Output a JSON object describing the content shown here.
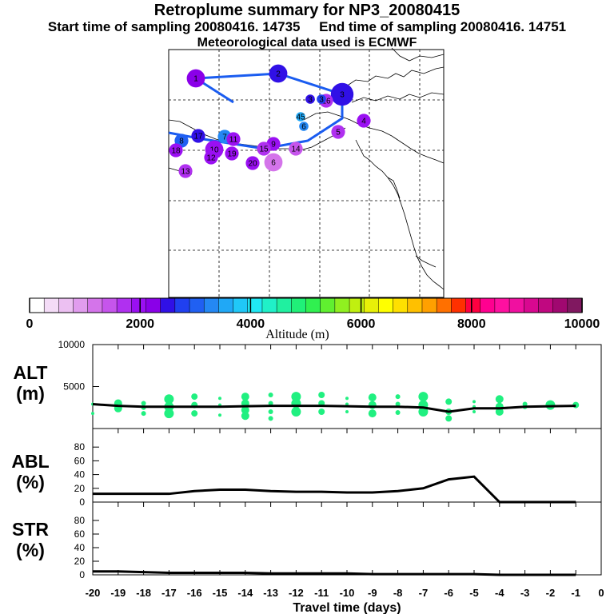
{
  "header": {
    "title": "Retroplume summary for NP3_20080415",
    "start_label": "Start time of sampling 20080416. 14735",
    "end_label": "End time of sampling 20080416. 14751",
    "met_label": "Meteorological data used is ECMWF"
  },
  "colorbar": {
    "axis_title": "Altitude (m)",
    "tick_labels": [
      "0",
      "2000",
      "4000",
      "6000",
      "8000",
      "10000"
    ],
    "colors": [
      "#ffffff",
      "#f4dcf7",
      "#ecc0f2",
      "#e19cee",
      "#d474ea",
      "#c655ec",
      "#b030f0",
      "#9a10f2",
      "#8a00e8",
      "#3010e6",
      "#2040f0",
      "#2060f2",
      "#2488f4",
      "#20a8f6",
      "#20c8f8",
      "#20e8f4",
      "#20f0c8",
      "#20f0a0",
      "#20f078",
      "#30f050",
      "#60f030",
      "#90f020",
      "#c0f010",
      "#e8f008",
      "#ffff00",
      "#ffe000",
      "#ffc000",
      "#ffa000",
      "#ff7000",
      "#ff3000",
      "#ff0040",
      "#ff0090",
      "#ff10a0",
      "#f010a0",
      "#d80890",
      "#c00880",
      "#a00870",
      "#801860"
    ]
  },
  "map": {
    "points": [
      {
        "label": "1",
        "alt": 2300,
        "size": 3
      },
      {
        "label": "2",
        "alt": 2500,
        "size": 3
      },
      {
        "label": "3",
        "alt": 2400,
        "size": 4
      },
      {
        "label": "4",
        "alt": 2100,
        "size": 2
      },
      {
        "label": "5",
        "alt": 1800,
        "size": 2
      },
      {
        "label": "6",
        "alt": 3400,
        "size": 1
      },
      {
        "label": "6",
        "alt": 1200,
        "size": 3
      },
      {
        "label": "7",
        "alt": 3200,
        "size": 2
      },
      {
        "label": "8",
        "alt": 2900,
        "size": 2
      },
      {
        "label": "9",
        "alt": 2000,
        "size": 2
      },
      {
        "label": "10",
        "alt": 2100,
        "size": 3
      },
      {
        "label": "11",
        "alt": 1900,
        "size": 2
      },
      {
        "label": "12",
        "alt": 2000,
        "size": 2
      },
      {
        "label": "13",
        "alt": 1700,
        "size": 2
      },
      {
        "label": "14",
        "alt": 1500,
        "size": 2
      },
      {
        "label": "15",
        "alt": 1800,
        "size": 2
      },
      {
        "label": "16",
        "alt": 1800,
        "size": 2
      },
      {
        "label": "17",
        "alt": 2400,
        "size": 2
      },
      {
        "label": "18",
        "alt": 1900,
        "size": 2
      },
      {
        "label": "19",
        "alt": 2000,
        "size": 2
      },
      {
        "label": "20",
        "alt": 2100,
        "size": 2
      },
      {
        "label": "45",
        "alt": 3600,
        "size": 1
      },
      {
        "label": "3",
        "alt": 2600,
        "size": 1
      },
      {
        "label": "3",
        "alt": 2700,
        "size": 1
      }
    ]
  },
  "chart_data": [
    {
      "type": "scatter",
      "name": "ALT",
      "ylabel_line1": "ALT",
      "ylabel_line2": "(m)",
      "ylim": [
        0,
        10000
      ],
      "ytick_labels": [
        "10000",
        "5000"
      ],
      "xlim": [
        -20,
        0
      ],
      "median_line": {
        "x": [
          -20,
          -19,
          -18,
          -17,
          -16,
          -15,
          -14,
          -13,
          -12,
          -11,
          -10,
          -9,
          -8,
          -7,
          -6,
          -5,
          -4,
          -3,
          -2,
          -1
        ],
        "y": [
          2900,
          2700,
          2600,
          2600,
          2600,
          2600,
          2650,
          2700,
          2700,
          2700,
          2650,
          2600,
          2600,
          2500,
          2000,
          2400,
          2400,
          2600,
          2650,
          2700
        ]
      },
      "clusters": [
        {
          "x": -20,
          "alts": [
            2900,
            1800
          ]
        },
        {
          "x": -19,
          "alts": [
            3000,
            2400
          ]
        },
        {
          "x": -18,
          "alts": [
            3000,
            2500,
            1800
          ]
        },
        {
          "x": -17,
          "alts": [
            3500,
            2600,
            1800
          ]
        },
        {
          "x": -16,
          "alts": [
            3800,
            2800,
            1800
          ]
        },
        {
          "x": -15,
          "alts": [
            3600,
            2800,
            1600
          ]
        },
        {
          "x": -14,
          "alts": [
            3800,
            3000,
            2200,
            1500
          ]
        },
        {
          "x": -13,
          "alts": [
            4000,
            3000,
            2000,
            1200
          ]
        },
        {
          "x": -12,
          "alts": [
            3800,
            3000,
            2000
          ]
        },
        {
          "x": -11,
          "alts": [
            4000,
            3000,
            2000
          ]
        },
        {
          "x": -10,
          "alts": [
            3600,
            2900,
            2000
          ]
        },
        {
          "x": -9,
          "alts": [
            3700,
            2800,
            1800
          ]
        },
        {
          "x": -8,
          "alts": [
            3800,
            2900,
            1900
          ]
        },
        {
          "x": -7,
          "alts": [
            3800,
            2800,
            2000
          ]
        },
        {
          "x": -6,
          "alts": [
            3200,
            2000,
            1200
          ]
        },
        {
          "x": -5,
          "alts": [
            3200,
            2600,
            2000
          ]
        },
        {
          "x": -4,
          "alts": [
            3500,
            2600,
            2000
          ]
        },
        {
          "x": -3,
          "alts": [
            2900,
            2600
          ]
        },
        {
          "x": -2,
          "alts": [
            2800
          ]
        },
        {
          "x": -1,
          "alts": [
            2800
          ]
        }
      ]
    },
    {
      "type": "line",
      "name": "ABL",
      "ylabel_line1": "ABL",
      "ylabel_line2": "(%)",
      "ylim": [
        0,
        100
      ],
      "ytick_labels": [
        "80",
        "60",
        "40",
        "20",
        "0"
      ],
      "xlim": [
        -20,
        0
      ],
      "x": [
        -20,
        -19,
        -18,
        -17,
        -16,
        -15,
        -14,
        -13,
        -12,
        -11,
        -10,
        -9,
        -8,
        -7,
        -6,
        -5,
        -4,
        -3,
        -2,
        -1
      ],
      "y": [
        12,
        12,
        12,
        12,
        16,
        18,
        18,
        16,
        15,
        15,
        14,
        14,
        16,
        20,
        33,
        37,
        0,
        0,
        0,
        0
      ]
    },
    {
      "type": "line",
      "name": "STR",
      "ylabel_line1": "STR",
      "ylabel_line2": "(%)",
      "ylim": [
        0,
        100
      ],
      "ytick_labels": [
        "80",
        "60",
        "40",
        "20",
        "0"
      ],
      "xlim": [
        -20,
        0
      ],
      "x": [
        -20,
        -19,
        -18,
        -17,
        -16,
        -15,
        -14,
        -13,
        -12,
        -11,
        -10,
        -9,
        -8,
        -7,
        -6,
        -5,
        -4,
        -3,
        -2,
        -1
      ],
      "y": [
        5,
        5,
        4,
        3,
        3,
        3,
        3,
        2,
        2,
        2,
        2,
        1,
        1,
        1,
        1,
        1,
        0,
        0,
        0,
        0
      ]
    }
  ],
  "xaxis": {
    "title": "Travel time (days)",
    "tick_labels": [
      "-20",
      "-19",
      "-18",
      "-17",
      "-16",
      "-15",
      "-14",
      "-13",
      "-12",
      "-11",
      "-10",
      "-9",
      "-8",
      "-7",
      "-6",
      "-5",
      "-4",
      "-3",
      "-2",
      "-1",
      "0"
    ]
  }
}
